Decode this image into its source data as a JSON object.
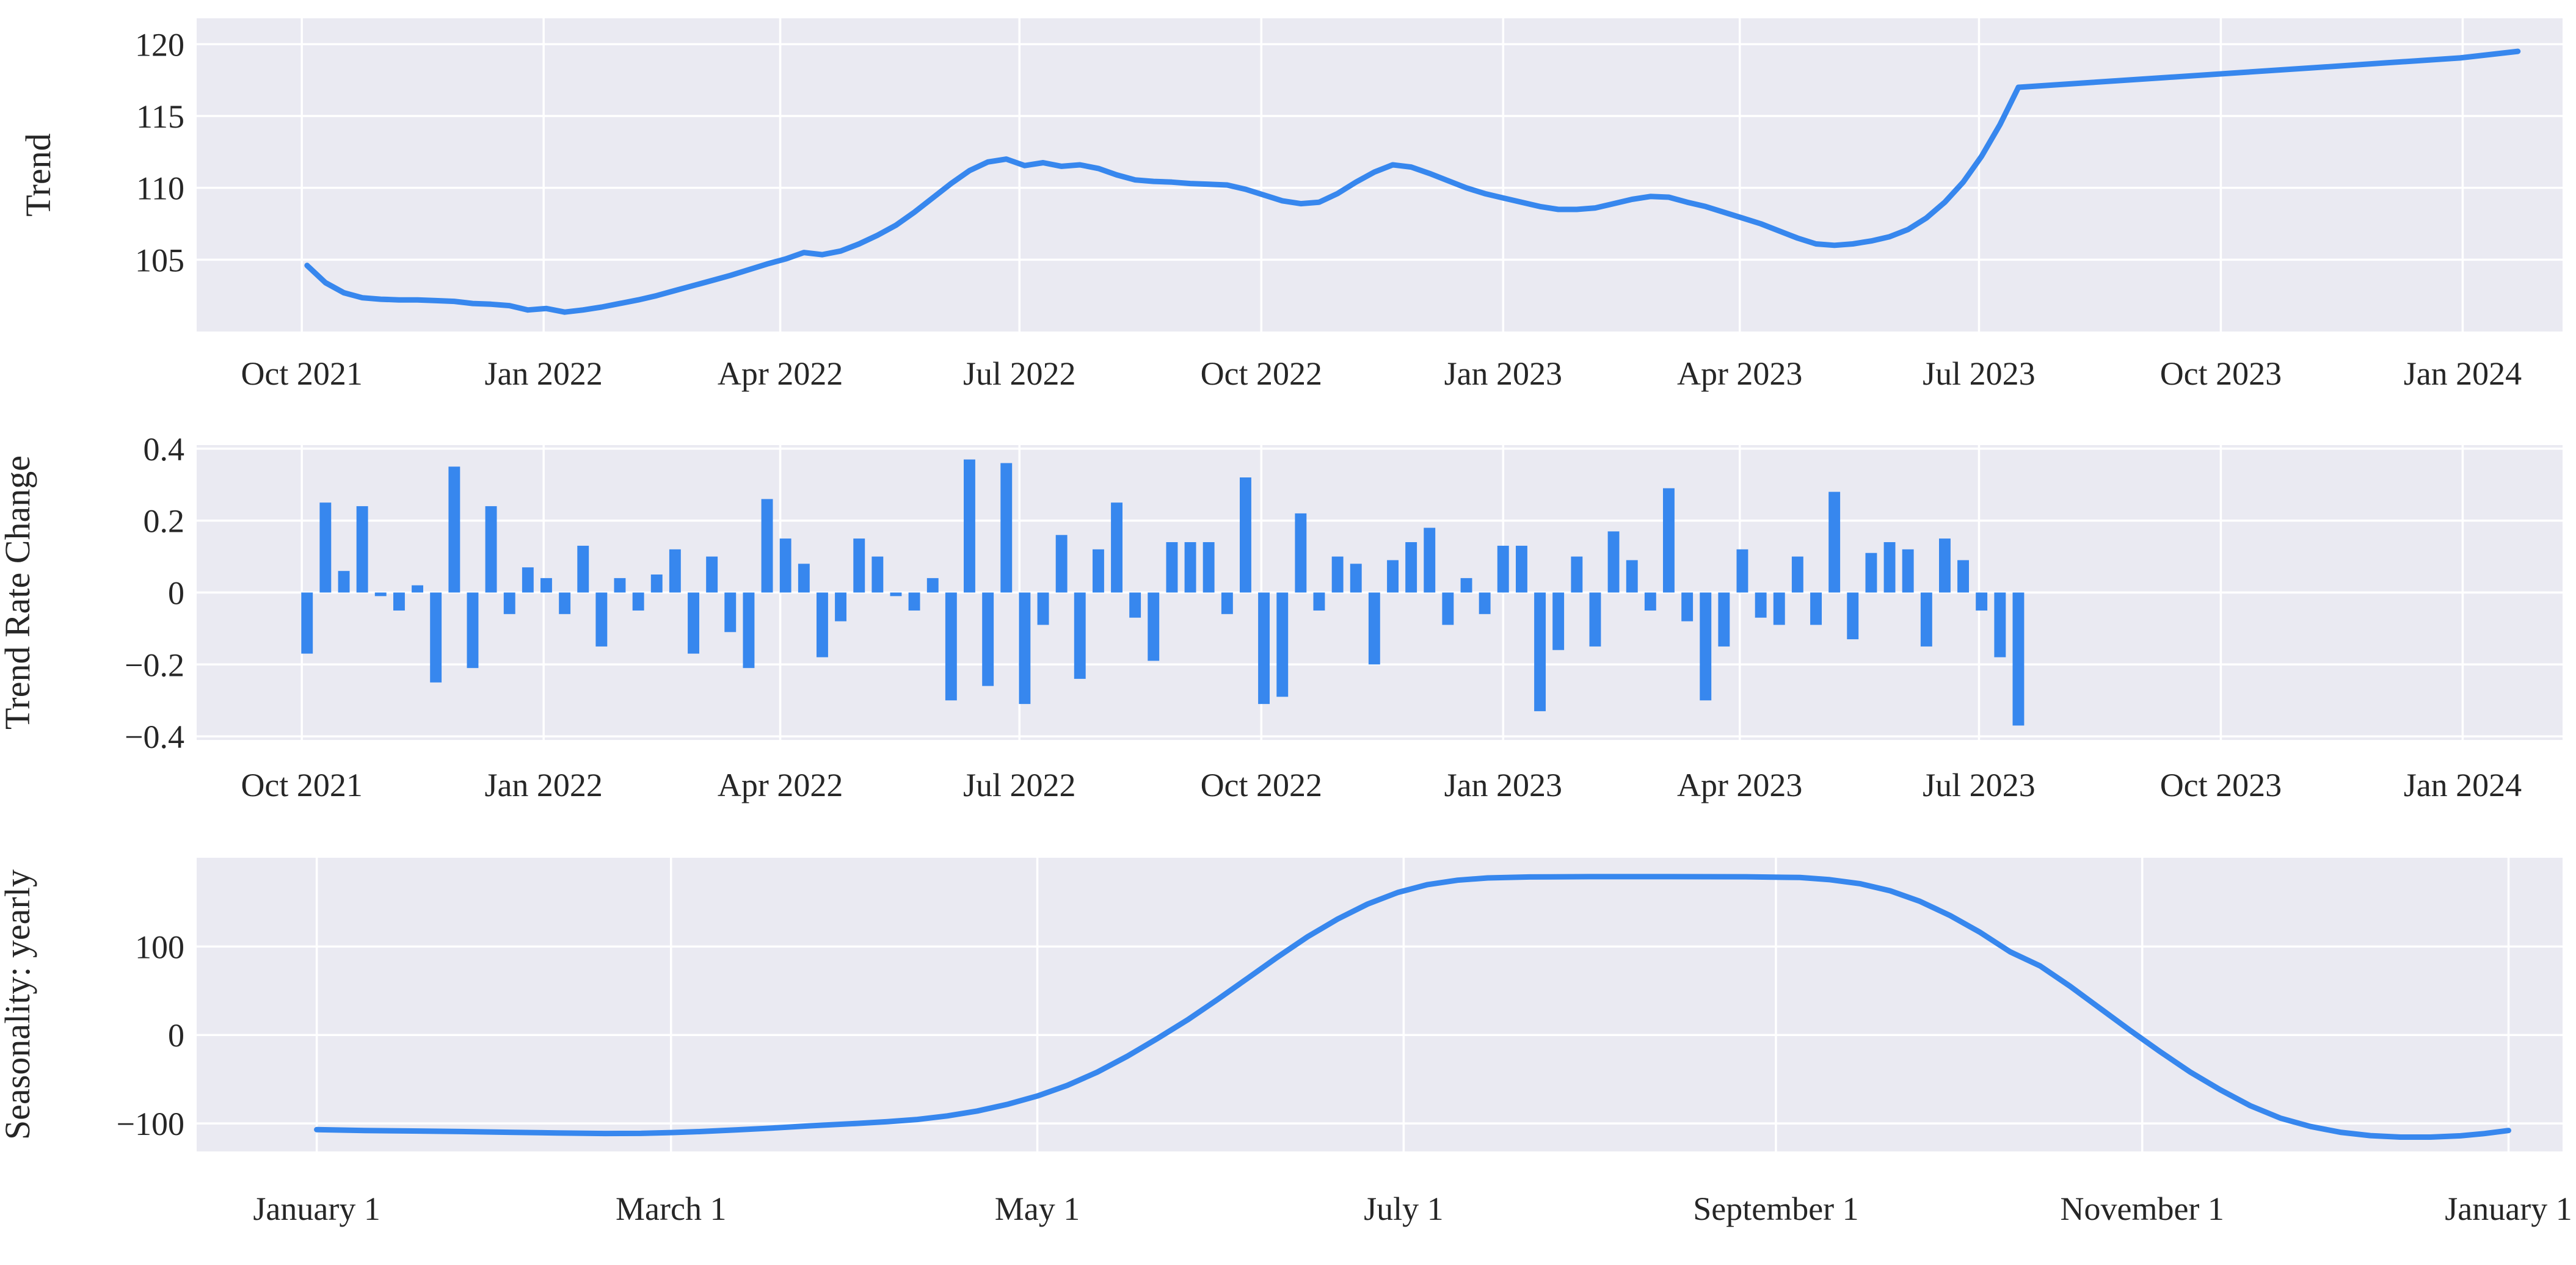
{
  "figure": {
    "background": "#ffffff",
    "panel_background": "#eaeaf2",
    "grid_color": "#ffffff",
    "accent_color": "#3787ee",
    "text_color": "#262626"
  },
  "chart_data": [
    {
      "id": "trend",
      "type": "line",
      "title": "",
      "xlabel": "",
      "ylabel": "Trend",
      "grid": true,
      "legend": false,
      "ylim": [
        100.0,
        121.8
      ],
      "xlim_days": [
        -40,
        860
      ],
      "yticks": [
        {
          "label": "105",
          "value": 105
        },
        {
          "label": "110",
          "value": 110
        },
        {
          "label": "115",
          "value": 115
        },
        {
          "label": "120",
          "value": 120
        }
      ],
      "xticks": [
        {
          "label": "Oct 2021",
          "day": 0
        },
        {
          "label": "Jan 2022",
          "day": 92
        },
        {
          "label": "Apr 2022",
          "day": 182
        },
        {
          "label": "Jul 2022",
          "day": 273
        },
        {
          "label": "Oct 2022",
          "day": 365
        },
        {
          "label": "Jan 2023",
          "day": 457
        },
        {
          "label": "Apr 2023",
          "day": 547
        },
        {
          "label": "Jul 2023",
          "day": 638
        },
        {
          "label": "Oct 2023",
          "day": 730
        },
        {
          "label": "Jan 2024",
          "day": 822
        }
      ],
      "series": [
        {
          "name": "trend-history-line",
          "x_start_day": 2,
          "x_step_days": 7,
          "values": [
            104.6,
            103.4,
            102.7,
            102.35,
            102.25,
            102.2,
            102.2,
            102.15,
            102.1,
            101.95,
            101.9,
            101.8,
            101.5,
            101.6,
            101.35,
            101.5,
            101.7,
            101.95,
            102.2,
            102.5,
            102.85,
            103.2,
            103.55,
            103.9,
            104.3,
            104.7,
            105.05,
            105.5,
            105.35,
            105.6,
            106.1,
            106.7,
            107.4,
            108.3,
            109.3,
            110.3,
            111.2,
            111.8,
            112.0,
            111.55,
            111.75,
            111.5,
            111.6,
            111.35,
            110.9,
            110.55,
            110.45,
            110.4,
            110.3,
            110.25,
            110.2,
            109.9,
            109.5,
            109.1,
            108.9,
            109.0,
            109.6,
            110.4,
            111.1,
            111.6,
            111.45,
            111.0,
            110.5,
            110.0,
            109.6,
            109.3,
            109.0,
            108.7,
            108.5,
            108.5,
            108.6,
            108.9,
            109.2,
            109.4,
            109.35,
            109.0,
            108.7,
            108.3,
            107.9,
            107.5,
            107.0,
            106.5,
            106.1,
            106.0,
            106.1,
            106.3,
            106.6,
            107.1,
            107.9,
            109.0,
            110.4,
            112.2,
            114.4,
            117.0
          ]
        },
        {
          "name": "trend-forecast-line",
          "x": [
            653,
            681,
            709,
            737,
            765,
            793,
            821,
            843
          ],
          "values": [
            117.0,
            117.34,
            117.68,
            118.02,
            118.36,
            118.7,
            119.04,
            119.5
          ]
        }
      ]
    },
    {
      "id": "trend-rate-change",
      "type": "bar",
      "title": "",
      "xlabel": "",
      "ylabel": "Trend Rate Change",
      "grid": true,
      "legend": false,
      "ylim": [
        -0.41,
        0.41
      ],
      "xlim_days": [
        -40,
        860
      ],
      "bar_width_days": 4.4,
      "yticks": [
        {
          "label": "−0.4",
          "value": -0.4
        },
        {
          "label": "−0.2",
          "value": -0.2
        },
        {
          "label": "0",
          "value": 0
        },
        {
          "label": "0.2",
          "value": 0.2
        },
        {
          "label": "0.4",
          "value": 0.4
        }
      ],
      "xticks": [
        {
          "label": "Oct 2021",
          "day": 0
        },
        {
          "label": "Jan 2022",
          "day": 92
        },
        {
          "label": "Apr 2022",
          "day": 182
        },
        {
          "label": "Jul 2022",
          "day": 273
        },
        {
          "label": "Oct 2022",
          "day": 365
        },
        {
          "label": "Jan 2023",
          "day": 457
        },
        {
          "label": "Apr 2023",
          "day": 547
        },
        {
          "label": "Jul 2023",
          "day": 638
        },
        {
          "label": "Oct 2023",
          "day": 730
        },
        {
          "label": "Jan 2024",
          "day": 822
        }
      ],
      "series": [
        {
          "name": "trend-rate-change-bars",
          "x_start_day": 2,
          "x_step_days": 7,
          "values": [
            -0.17,
            0.25,
            0.06,
            0.24,
            -0.01,
            -0.05,
            0.02,
            -0.25,
            0.35,
            -0.21,
            0.24,
            -0.06,
            0.07,
            0.04,
            -0.06,
            0.13,
            -0.15,
            0.04,
            -0.05,
            0.05,
            0.12,
            -0.17,
            0.1,
            -0.11,
            -0.21,
            0.26,
            0.15,
            0.08,
            -0.18,
            -0.08,
            0.15,
            0.1,
            -0.01,
            -0.05,
            0.04,
            -0.3,
            0.37,
            -0.26,
            0.36,
            -0.31,
            -0.09,
            0.16,
            -0.24,
            0.12,
            0.25,
            -0.07,
            -0.19,
            0.14,
            0.14,
            0.14,
            -0.06,
            0.32,
            -0.31,
            -0.29,
            0.22,
            -0.05,
            0.1,
            0.08,
            -0.2,
            0.09,
            0.14,
            0.18,
            -0.09,
            0.04,
            -0.06,
            0.13,
            0.13,
            -0.33,
            -0.16,
            0.1,
            -0.15,
            0.17,
            0.09,
            -0.05,
            0.29,
            -0.08,
            -0.3,
            -0.15,
            0.12,
            -0.07,
            -0.09,
            0.1,
            -0.09,
            0.28,
            -0.13,
            0.11,
            0.14,
            0.12,
            -0.15,
            0.15,
            0.09,
            -0.05,
            -0.18,
            -0.37
          ]
        }
      ]
    },
    {
      "id": "seasonality-yearly",
      "type": "line",
      "title": "",
      "xlabel": "",
      "ylabel": "Seasonality: yearly",
      "grid": true,
      "legend": false,
      "ylim": [
        -131.7,
        200.3
      ],
      "xlim_days": [
        -20,
        374
      ],
      "yticks": [
        {
          "label": "−100",
          "value": -100
        },
        {
          "label": "0",
          "value": 0
        },
        {
          "label": "100",
          "value": 100
        }
      ],
      "xticks": [
        {
          "label": "January 1",
          "day": 0
        },
        {
          "label": "March 1",
          "day": 59
        },
        {
          "label": "May 1",
          "day": 120
        },
        {
          "label": "July 1",
          "day": 181
        },
        {
          "label": "September 1",
          "day": 243
        },
        {
          "label": "November 1",
          "day": 304
        },
        {
          "label": "January 1",
          "day": 365
        }
      ],
      "series": [
        {
          "name": "yearly-seasonality-line",
          "points": [
            [
              0,
              -107
            ],
            [
              8,
              -108
            ],
            [
              16,
              -108.6
            ],
            [
              24,
              -109.2
            ],
            [
              32,
              -110
            ],
            [
              40,
              -110.8
            ],
            [
              48,
              -111.4
            ],
            [
              54,
              -111.3
            ],
            [
              59,
              -110.4
            ],
            [
              64,
              -109.2
            ],
            [
              70,
              -107.3
            ],
            [
              76,
              -105.2
            ],
            [
              82,
              -102.8
            ],
            [
              90,
              -100
            ],
            [
              95,
              -98
            ],
            [
              100,
              -95.5
            ],
            [
              105,
              -91.5
            ],
            [
              110,
              -86
            ],
            [
              115,
              -78.5
            ],
            [
              120,
              -69
            ],
            [
              125,
              -57
            ],
            [
              130,
              -42
            ],
            [
              135,
              -24
            ],
            [
              140,
              -4
            ],
            [
              145,
              17
            ],
            [
              150,
              40
            ],
            [
              155,
              64
            ],
            [
              160,
              88
            ],
            [
              165,
              111
            ],
            [
              170,
              131
            ],
            [
              175,
              148
            ],
            [
              180,
              161
            ],
            [
              185,
              170
            ],
            [
              190,
              175
            ],
            [
              195,
              177.5
            ],
            [
              202,
              178.6
            ],
            [
              212,
              179
            ],
            [
              225,
              179
            ],
            [
              238,
              178.8
            ],
            [
              247,
              178
            ],
            [
              252,
              175.5
            ],
            [
              257,
              171
            ],
            [
              262,
              163
            ],
            [
              267,
              151
            ],
            [
              272,
              135
            ],
            [
              277,
              116
            ],
            [
              282,
              94
            ],
            [
              287,
              78
            ],
            [
              292,
              55
            ],
            [
              297,
              30
            ],
            [
              302,
              5
            ],
            [
              307,
              -19
            ],
            [
              312,
              -42
            ],
            [
              317,
              -62
            ],
            [
              322,
              -80
            ],
            [
              327,
              -94
            ],
            [
              332,
              -103.5
            ],
            [
              337,
              -110
            ],
            [
              342,
              -113.8
            ],
            [
              347,
              -115.5
            ],
            [
              352,
              -115.5
            ],
            [
              357,
              -114
            ],
            [
              361,
              -111.5
            ],
            [
              365,
              -108
            ]
          ]
        }
      ]
    }
  ]
}
